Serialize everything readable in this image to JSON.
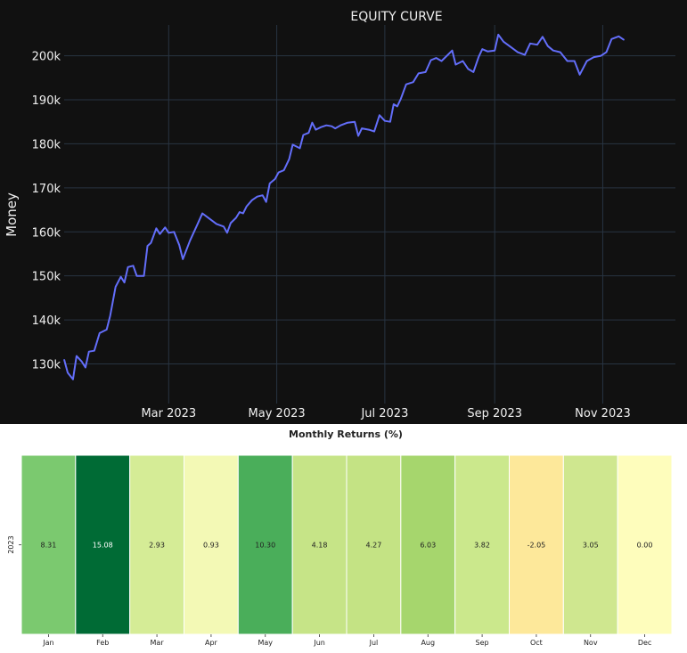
{
  "chart_data": [
    {
      "type": "line",
      "title": "EQUITY CURVE",
      "xlabel": "",
      "ylabel": "Money",
      "ylim": [
        121000,
        207000
      ],
      "xlim": [
        "2023-01-01",
        "2023-12-12"
      ],
      "grid": true,
      "line_color": "#636efa",
      "y_ticks": [
        {
          "value": 130000,
          "label": "130k"
        },
        {
          "value": 140000,
          "label": "140k"
        },
        {
          "value": 150000,
          "label": "150k"
        },
        {
          "value": 160000,
          "label": "160k"
        },
        {
          "value": 170000,
          "label": "170k"
        },
        {
          "value": 180000,
          "label": "180k"
        },
        {
          "value": 190000,
          "label": "190k"
        },
        {
          "value": 200000,
          "label": "200k"
        }
      ],
      "x_ticks": [
        {
          "value": "2023-03-01",
          "label": "Mar 2023"
        },
        {
          "value": "2023-05-01",
          "label": "May 2023"
        },
        {
          "value": "2023-07-01",
          "label": "Jul 2023"
        },
        {
          "value": "2023-09-01",
          "label": "Sep 2023"
        },
        {
          "value": "2023-11-01",
          "label": "Nov 2023"
        }
      ],
      "series": [
        {
          "points": [
            [
              "2023-01-01",
              131000
            ],
            [
              "2023-01-03",
              128000
            ],
            [
              "2023-01-06",
              126500
            ],
            [
              "2023-01-08",
              131800
            ],
            [
              "2023-01-11",
              130500
            ],
            [
              "2023-01-13",
              129200
            ],
            [
              "2023-01-15",
              132800
            ],
            [
              "2023-01-18",
              133000
            ],
            [
              "2023-01-21",
              137000
            ],
            [
              "2023-01-25",
              137800
            ],
            [
              "2023-01-27",
              141000
            ],
            [
              "2023-01-30",
              147500
            ],
            [
              "2023-02-02",
              149800
            ],
            [
              "2023-02-04",
              148500
            ],
            [
              "2023-02-06",
              152000
            ],
            [
              "2023-02-09",
              152300
            ],
            [
              "2023-02-11",
              150000
            ],
            [
              "2023-02-15",
              150000
            ],
            [
              "2023-02-17",
              156800
            ],
            [
              "2023-02-19",
              157500
            ],
            [
              "2023-02-22",
              160800
            ],
            [
              "2023-02-24",
              159500
            ],
            [
              "2023-02-27",
              161000
            ],
            [
              "2023-03-01",
              159800
            ],
            [
              "2023-03-04",
              160000
            ],
            [
              "2023-03-07",
              157000
            ],
            [
              "2023-03-09",
              153800
            ],
            [
              "2023-03-13",
              158000
            ],
            [
              "2023-03-17",
              161500
            ],
            [
              "2023-03-20",
              164200
            ],
            [
              "2023-03-24",
              163000
            ],
            [
              "2023-03-28",
              161800
            ],
            [
              "2023-04-01",
              161200
            ],
            [
              "2023-04-03",
              159800
            ],
            [
              "2023-04-05",
              162000
            ],
            [
              "2023-04-08",
              163200
            ],
            [
              "2023-04-10",
              164500
            ],
            [
              "2023-04-12",
              164200
            ],
            [
              "2023-04-14",
              165800
            ],
            [
              "2023-04-17",
              167200
            ],
            [
              "2023-04-20",
              168000
            ],
            [
              "2023-04-23",
              168300
            ],
            [
              "2023-04-25",
              166800
            ],
            [
              "2023-04-27",
              171000
            ],
            [
              "2023-04-30",
              172000
            ],
            [
              "2023-05-02",
              173500
            ],
            [
              "2023-05-05",
              174000
            ],
            [
              "2023-05-08",
              176500
            ],
            [
              "2023-05-10",
              179800
            ],
            [
              "2023-05-14",
              179000
            ],
            [
              "2023-05-16",
              182000
            ],
            [
              "2023-05-19",
              182500
            ],
            [
              "2023-05-21",
              184800
            ],
            [
              "2023-05-23",
              183200
            ],
            [
              "2023-05-26",
              183800
            ],
            [
              "2023-05-29",
              184200
            ],
            [
              "2023-06-01",
              184000
            ],
            [
              "2023-06-03",
              183500
            ],
            [
              "2023-06-06",
              184200
            ],
            [
              "2023-06-10",
              184800
            ],
            [
              "2023-06-14",
              185000
            ],
            [
              "2023-06-16",
              181800
            ],
            [
              "2023-06-18",
              183500
            ],
            [
              "2023-06-22",
              183200
            ],
            [
              "2023-06-25",
              182800
            ],
            [
              "2023-06-28",
              186500
            ],
            [
              "2023-07-01",
              185200
            ],
            [
              "2023-07-04",
              185000
            ],
            [
              "2023-07-06",
              189000
            ],
            [
              "2023-07-08",
              188500
            ],
            [
              "2023-07-10",
              190200
            ],
            [
              "2023-07-13",
              193500
            ],
            [
              "2023-07-17",
              194000
            ],
            [
              "2023-07-20",
              196000
            ],
            [
              "2023-07-24",
              196300
            ],
            [
              "2023-07-27",
              199000
            ],
            [
              "2023-07-30",
              199500
            ],
            [
              "2023-08-02",
              198800
            ],
            [
              "2023-08-05",
              200000
            ],
            [
              "2023-08-08",
              201200
            ],
            [
              "2023-08-10",
              198000
            ],
            [
              "2023-08-14",
              198800
            ],
            [
              "2023-08-17",
              197000
            ],
            [
              "2023-08-20",
              196300
            ],
            [
              "2023-08-23",
              199800
            ],
            [
              "2023-08-25",
              201500
            ],
            [
              "2023-08-28",
              201000
            ],
            [
              "2023-09-01",
              201200
            ],
            [
              "2023-09-03",
              204800
            ],
            [
              "2023-09-06",
              203200
            ],
            [
              "2023-09-10",
              202000
            ],
            [
              "2023-09-14",
              200800
            ],
            [
              "2023-09-18",
              200200
            ],
            [
              "2023-09-21",
              202800
            ],
            [
              "2023-09-25",
              202500
            ],
            [
              "2023-09-28",
              204300
            ],
            [
              "2023-10-01",
              202200
            ],
            [
              "2023-10-04",
              201200
            ],
            [
              "2023-10-08",
              200800
            ],
            [
              "2023-10-12",
              198800
            ],
            [
              "2023-10-16",
              198800
            ],
            [
              "2023-10-19",
              195700
            ],
            [
              "2023-10-23",
              198800
            ],
            [
              "2023-10-27",
              199700
            ],
            [
              "2023-10-31",
              200000
            ],
            [
              "2023-11-03",
              200800
            ],
            [
              "2023-11-06",
              203800
            ],
            [
              "2023-11-10",
              204400
            ],
            [
              "2023-11-13",
              203600
            ]
          ]
        }
      ]
    },
    {
      "type": "heatmap",
      "title": "Monthly Returns (%)",
      "xlabel": "",
      "ylabel": "",
      "rows": [
        "2023"
      ],
      "columns": [
        "Jan",
        "Feb",
        "Mar",
        "Apr",
        "May",
        "Jun",
        "Jul",
        "Aug",
        "Sep",
        "Oct",
        "Nov",
        "Dec"
      ],
      "values": [
        [
          8.31,
          15.08,
          2.93,
          0.93,
          10.3,
          4.18,
          4.27,
          6.03,
          3.82,
          -2.05,
          3.05,
          0.0
        ]
      ],
      "value_labels": [
        [
          "8.31",
          "15.08",
          "2.93",
          "0.93",
          "10.30",
          "4.18",
          "4.27",
          "6.03",
          "3.82",
          "-2.05",
          "3.05",
          "0.00"
        ]
      ],
      "colormap": "RdYlGn",
      "colors": [
        [
          "#7bc96f",
          "#006b35",
          "#d5ec96",
          "#f3f9b5",
          "#4aae5a",
          "#c6e487",
          "#c4e384",
          "#a6d66d",
          "#cbe88c",
          "#fde89a",
          "#cfe78f",
          "#fefdbc"
        ]
      ]
    }
  ]
}
